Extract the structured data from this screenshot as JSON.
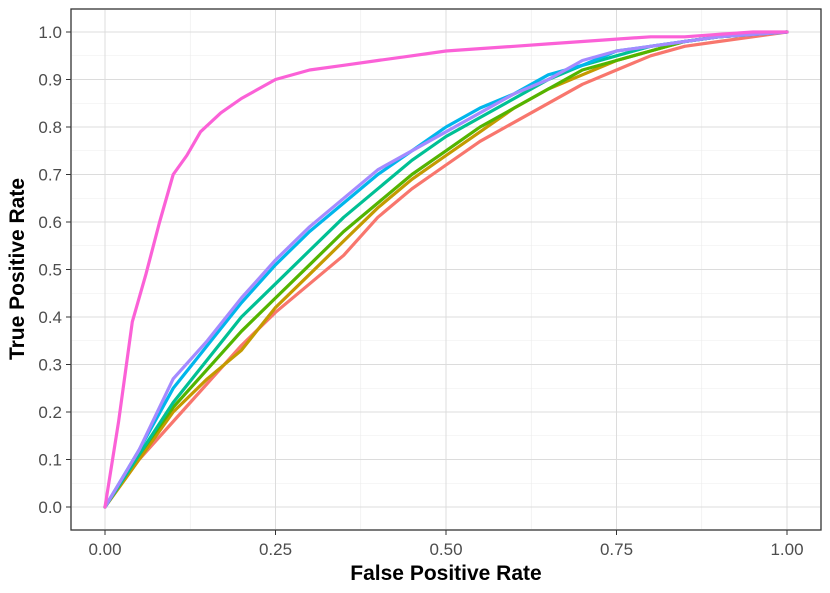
{
  "chart_data": {
    "type": "line",
    "title": "",
    "xlabel": "False Positive Rate",
    "ylabel": "True Positive Rate",
    "xlim": [
      0,
      1
    ],
    "ylim": [
      0,
      1
    ],
    "xticks": [
      0,
      0.25,
      0.5,
      0.75,
      1.0
    ],
    "xtick_labels": [
      "0.00",
      "0.25",
      "0.50",
      "0.75",
      "1.00"
    ],
    "yticks": [
      0,
      0.1,
      0.2,
      0.3,
      0.4,
      0.5,
      0.6,
      0.7,
      0.8,
      0.9,
      1.0
    ],
    "ytick_labels": [
      "0.0",
      "0.1",
      "0.2",
      "0.3",
      "0.4",
      "0.5",
      "0.6",
      "0.7",
      "0.8",
      "0.9",
      "1.0"
    ],
    "grid": true,
    "legend": "none",
    "series": [
      {
        "color": "#F8766D",
        "x": [
          0,
          0.05,
          0.1,
          0.15,
          0.2,
          0.25,
          0.3,
          0.35,
          0.4,
          0.45,
          0.5,
          0.55,
          0.6,
          0.65,
          0.7,
          0.75,
          0.8,
          0.85,
          0.9,
          0.95,
          1.0
        ],
        "y": [
          0,
          0.1,
          0.18,
          0.26,
          0.34,
          0.41,
          0.47,
          0.53,
          0.61,
          0.67,
          0.72,
          0.77,
          0.81,
          0.85,
          0.89,
          0.92,
          0.95,
          0.97,
          0.98,
          0.99,
          1.0
        ]
      },
      {
        "color": "#C49A00",
        "x": [
          0,
          0.05,
          0.1,
          0.15,
          0.2,
          0.25,
          0.3,
          0.35,
          0.4,
          0.45,
          0.5,
          0.55,
          0.6,
          0.65,
          0.7,
          0.75,
          0.8,
          0.85,
          0.9,
          0.95,
          1.0
        ],
        "y": [
          0,
          0.1,
          0.2,
          0.27,
          0.33,
          0.42,
          0.49,
          0.56,
          0.63,
          0.69,
          0.74,
          0.79,
          0.84,
          0.88,
          0.91,
          0.94,
          0.96,
          0.98,
          0.99,
          0.995,
          1.0
        ]
      },
      {
        "color": "#53B400",
        "x": [
          0,
          0.05,
          0.1,
          0.15,
          0.2,
          0.25,
          0.3,
          0.35,
          0.4,
          0.45,
          0.5,
          0.55,
          0.6,
          0.65,
          0.7,
          0.75,
          0.8,
          0.85,
          0.9,
          0.95,
          1.0
        ],
        "y": [
          0,
          0.11,
          0.21,
          0.29,
          0.37,
          0.44,
          0.51,
          0.58,
          0.64,
          0.7,
          0.75,
          0.8,
          0.84,
          0.88,
          0.92,
          0.94,
          0.96,
          0.98,
          0.99,
          0.995,
          1.0
        ]
      },
      {
        "color": "#00C094",
        "x": [
          0,
          0.05,
          0.1,
          0.15,
          0.2,
          0.25,
          0.3,
          0.35,
          0.4,
          0.45,
          0.5,
          0.55,
          0.6,
          0.65,
          0.7,
          0.75,
          0.8,
          0.85,
          0.9,
          0.95,
          1.0
        ],
        "y": [
          0,
          0.11,
          0.22,
          0.31,
          0.4,
          0.47,
          0.54,
          0.61,
          0.67,
          0.73,
          0.78,
          0.82,
          0.86,
          0.9,
          0.93,
          0.95,
          0.97,
          0.98,
          0.99,
          0.995,
          1.0
        ]
      },
      {
        "color": "#00B6EB",
        "x": [
          0,
          0.05,
          0.1,
          0.15,
          0.2,
          0.25,
          0.3,
          0.35,
          0.4,
          0.45,
          0.5,
          0.55,
          0.6,
          0.65,
          0.7,
          0.75,
          0.8,
          0.85,
          0.9,
          0.95,
          1.0
        ],
        "y": [
          0,
          0.12,
          0.25,
          0.34,
          0.43,
          0.51,
          0.58,
          0.64,
          0.7,
          0.75,
          0.8,
          0.84,
          0.87,
          0.91,
          0.93,
          0.96,
          0.97,
          0.98,
          0.99,
          0.995,
          1.0
        ]
      },
      {
        "color": "#A58AFF",
        "x": [
          0,
          0.05,
          0.1,
          0.15,
          0.2,
          0.25,
          0.3,
          0.35,
          0.4,
          0.45,
          0.5,
          0.55,
          0.6,
          0.65,
          0.7,
          0.75,
          0.8,
          0.85,
          0.9,
          0.95,
          1.0
        ],
        "y": [
          0,
          0.12,
          0.27,
          0.35,
          0.44,
          0.52,
          0.59,
          0.65,
          0.71,
          0.75,
          0.79,
          0.83,
          0.87,
          0.9,
          0.94,
          0.96,
          0.97,
          0.98,
          0.99,
          0.995,
          1.0
        ]
      },
      {
        "color": "#FB61D7",
        "x": [
          0,
          0.02,
          0.04,
          0.06,
          0.08,
          0.1,
          0.12,
          0.14,
          0.17,
          0.2,
          0.25,
          0.3,
          0.35,
          0.4,
          0.45,
          0.5,
          0.55,
          0.6,
          0.65,
          0.7,
          0.75,
          0.8,
          0.85,
          0.9,
          0.95,
          1.0
        ],
        "y": [
          0,
          0.18,
          0.39,
          0.49,
          0.6,
          0.7,
          0.74,
          0.79,
          0.83,
          0.86,
          0.9,
          0.92,
          0.93,
          0.94,
          0.95,
          0.96,
          0.965,
          0.97,
          0.975,
          0.98,
          0.985,
          0.99,
          0.99,
          0.995,
          1.0,
          1.0
        ]
      }
    ]
  }
}
